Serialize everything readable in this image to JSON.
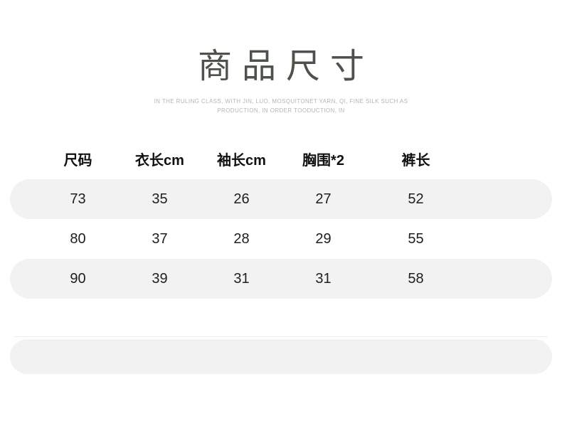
{
  "header": {
    "title": "商品尺寸",
    "subtitle_line1": "IN THE RULING CLASS, WITH JIN, LUO, MOSQUITONET YARN, QI, FINE SILK SUCH AS",
    "subtitle_line2": "PRODUCTION, IN ORDER TOODUCTION, IN"
  },
  "colors": {
    "title_text": "#4d524a",
    "subtitle_text": "#b5b5b5",
    "header_text": "#111111",
    "cell_text": "#1f1f1f",
    "row_shade": "#f2f2f2",
    "divider": "#ececec"
  },
  "size_table": {
    "headers": [
      "尺码",
      "衣长cm",
      "袖长cm",
      "胸围*2",
      "裤长"
    ],
    "rows": [
      {
        "cells": [
          "73",
          "35",
          "26",
          "27",
          "52"
        ]
      },
      {
        "cells": [
          "80",
          "37",
          "28",
          "29",
          "55"
        ]
      },
      {
        "cells": [
          "90",
          "39",
          "31",
          "31",
          "58"
        ]
      }
    ]
  },
  "chart_data": {
    "type": "table",
    "title": "商品尺寸",
    "subtitle": "IN THE RULING CLASS, WITH JIN, LUO, MOSQUITONET YARN, QI, FINE SILK SUCH AS PRODUCTION, IN ORDER TOODUCTION, IN",
    "columns": [
      "尺码",
      "衣长cm",
      "袖长cm",
      "胸围*2",
      "裤长"
    ],
    "rows": [
      [
        "73",
        "35",
        "26",
        "27",
        "52"
      ],
      [
        "80",
        "37",
        "28",
        "29",
        "55"
      ],
      [
        "90",
        "39",
        "31",
        "31",
        "58"
      ]
    ],
    "layout_hints": {
      "striped_rows": [
        0,
        2
      ],
      "stripe_color": "#f2f2f2",
      "rounded_row_pills": true
    }
  }
}
